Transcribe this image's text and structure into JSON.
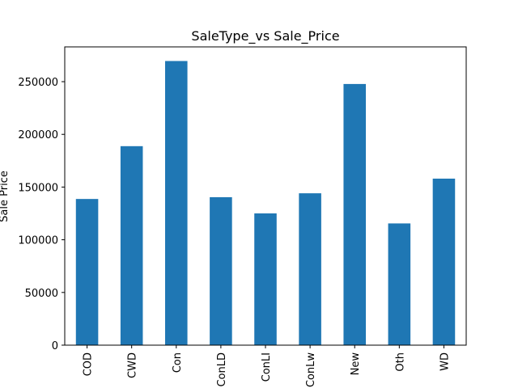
{
  "chart_data": {
    "type": "bar",
    "title": "SaleType_vs Sale_Price",
    "xlabel": "",
    "ylabel": "Sale Price",
    "categories": [
      "COD",
      "CWD",
      "Con",
      "ConLD",
      "ConLI",
      "ConLw",
      "New",
      "Oth",
      "WD"
    ],
    "values": [
      138700,
      188800,
      269600,
      140400,
      125000,
      144100,
      247800,
      115500,
      158000
    ],
    "ylim": [
      0,
      283000
    ],
    "yticks": [
      0,
      50000,
      100000,
      150000,
      200000,
      250000
    ],
    "ytick_labels": [
      "0",
      "50000",
      "100000",
      "150000",
      "200000",
      "250000"
    ],
    "bar_color": "#1f77b4",
    "grid": false,
    "legend": "none"
  }
}
